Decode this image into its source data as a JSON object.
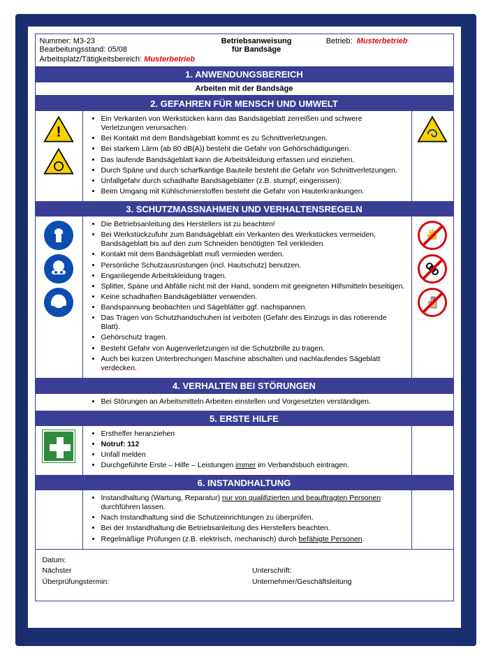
{
  "colors": {
    "frame": "#1a2d6e",
    "header_bg": "#3a3f95",
    "header_text": "#ffffff",
    "accent_red": "#e30613",
    "mandatory_blue": "#0b4db0",
    "prohibit_red": "#d20a11",
    "warning_yellow": "#f9d200",
    "firstaid_green": "#2e8b3d",
    "text": "#000000"
  },
  "header": {
    "number_label": "Nummer:",
    "number_value": "M3-23",
    "revision_label": "Bearbeitungsstand:",
    "revision_value": "05/08",
    "title_line1": "Betriebsanweisung",
    "title_line2": "für Bandsäge",
    "company_label": "Betrieb:",
    "company_value": "Musterbetrieb",
    "workplace_label": "Arbeitsplatz/Tätigkeitsbereich:",
    "workplace_value": "Musterbetrieb"
  },
  "sections": {
    "s1": {
      "title": "1. ANWENDUNGSBEREICH",
      "subtitle": "Arbeiten mit der Bandsäge"
    },
    "s2": {
      "title": "2. GEFAHREN FÜR MENSCH UND UMWELT",
      "items": [
        "Ein Verkanten von Werkstücken kann das Bandsägeblatt zerreißen und schwere Verletzungen verursachen.",
        "Bei Kontakt mit dem Bandsägeblatt kommt es zu Schnittverletzungen.",
        "Bei starkem Lärm (ab 80 dB(A)) besteht die Gefahr von Gehörschädigungen.",
        "Das laufende Bandsägeblatt kann die Arbeitskleidung erfassen und einziehen.",
        "Durch Späne und durch scharfkantige Bauteile besteht die Gefahr von Schnittverletzungen.",
        "Unfallgefahr durch schadhafte Bandsägeblätter (z.B. stumpf; eingerissen).",
        "Beim Umgang mit Kühlschmierstoffen besteht die Gefahr von Hauterkrankungen."
      ]
    },
    "s3": {
      "title": "3. SCHUTZMASSNAHMEN UND VERHALTENSREGELN",
      "items": [
        "Die Betriebsanleitung des Herstellers ist zu beachten!",
        "Bei Werkstückzufuhr zum Bandsägeblatt ein Verkanten des Werkstückes vermeiden, Bandsägeblatt bis auf den zum Schneiden benötigten Teil verkleiden.",
        "Kontakt mit dem Bandsägeblatt muß vermieden werden.",
        "Persönliche Schutzausrüstungen (incl. Hautschutz) benutzen.",
        "Enganliegende Arbeitskleidung tragen.",
        "Splitter, Späne und Abfälle nicht mit der Hand, sondern mit geeigneten Hilfsmitteln beseitigen.",
        "Keine schadhaften Bandsägeblätter verwenden.",
        "Bandspannung beobachten und Sägeblätter ggf. nachspannen.",
        "Das Tragen von Schutzhandschuhen ist verboten (Gefahr des Einzugs in das rotierende Blatt).",
        "Gehörschutz tragen.",
        "Besteht Gefahr von Augenverletzungen ist die Schutzbrille zu tragen.",
        "Auch bei kurzen Unterbrechungen Maschine abschalten und nachlaufendes Sägeblatt verdecken."
      ]
    },
    "s4": {
      "title": "4. VERHALTEN BEI STÖRUNGEN",
      "items": [
        "Bei Störungen an Arbeitsmitteln Arbeiten einstellen und Vorgesetzten verständigen."
      ]
    },
    "s5": {
      "title": "5. ERSTE HILFE",
      "items": [
        "Ersthelfer heranziehen",
        "Notruf: 112",
        "Unfall melden",
        "Durchgeführte Erste – Hilfe – Leistungen immer im Verbandsbuch eintragen."
      ],
      "notruf_bold": "Notruf: 112",
      "immer_underline": "immer"
    },
    "s6": {
      "title": "6. INSTANDHALTUNG",
      "items": [
        "Instandhaltung (Wartung, Reparatur) nur von qualifizierten und beauftragten Personen durchführen lassen.",
        "Nach Instandhaltung sind die Schutzeinrichtungen zu überprüfen.",
        "Bei der Instandhaltung die Betriebsanleitung des Herstellers beachten.",
        "Regelmäßige Prüfungen (z.B. elektrisch, mechanisch) durch befähigte Personen."
      ]
    }
  },
  "footer": {
    "date_label": "Datum:",
    "next_label": "Nächster",
    "check_label": "Überprüfungstermin:",
    "sign_label": "Unterschrift:",
    "owner_label": "Unternehmer/Geschäftsleitung"
  },
  "icons": {
    "warn_general": "warning-triangle-exclamation",
    "warn_circle": "warning-triangle-circle",
    "warn_rotating": "warning-triangle-rotating",
    "mand_suit": "mandatory-protective-clothing",
    "mand_goggles": "mandatory-eye-protection",
    "mand_ear": "mandatory-ear-protection",
    "proh_glove": "prohibition-gloves",
    "proh_chain": "prohibition-chain",
    "proh_hand": "prohibition-touch",
    "firstaid": "first-aid-cross"
  }
}
